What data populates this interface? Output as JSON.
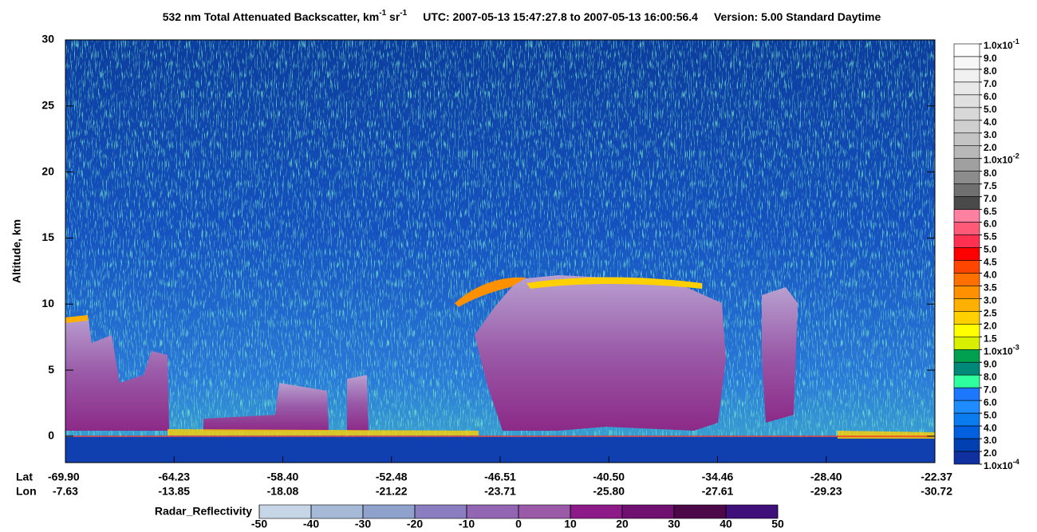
{
  "chart_data": {
    "type": "curtain",
    "title_parts": [
      "532 nm Total Attenuated Backscatter, km",
      "-1",
      " sr",
      "-1",
      "UTC:  2007-05-13 15:47:27.8  to  2007-05-13 16:00:56.4",
      "Version: 5.00  Standard  Daytime"
    ],
    "y_label": "Altitude, km",
    "ylim": [
      -2,
      30
    ],
    "yticks": [
      0,
      5,
      10,
      15,
      20,
      25,
      30
    ],
    "lat_title": "Lat",
    "lon_title": "Lon",
    "lat_labels": [
      "-69.90",
      "-64.23",
      "-58.40",
      "-52.48",
      "-46.51",
      "-40.50",
      "-34.46",
      "-28.40",
      "-22.37"
    ],
    "lon_labels": [
      "-7.63",
      "-13.85",
      "-18.08",
      "-21.22",
      "-23.71",
      "-25.80",
      "-27.61",
      "-29.23",
      "-30.72"
    ],
    "colorbar_labels": [
      {
        "base": "1.0x10",
        "exp": "-1"
      },
      "9.0",
      "8.0",
      "7.0",
      "6.0",
      "5.0",
      "4.0",
      "3.0",
      "2.0",
      {
        "base": "1.0x10",
        "exp": "-2"
      },
      "8.0",
      "7.5",
      "7.0",
      "6.5",
      "6.0",
      "5.5",
      "5.0",
      "4.5",
      "4.0",
      "3.5",
      "3.0",
      "2.5",
      "2.0",
      "1.5",
      {
        "base": "1.0x10",
        "exp": "-3"
      },
      "9.0",
      "8.0",
      "7.0",
      "6.0",
      "5.0",
      "4.0",
      "3.0",
      "2.0",
      {
        "base": "1.0x10",
        "exp": "-4"
      }
    ],
    "colorbar_colors": [
      "#ffffff",
      "#f7f7f7",
      "#f0f0f0",
      "#e8e8e8",
      "#e0e0e0",
      "#d8d8d8",
      "#cfcfcf",
      "#c4c4c4",
      "#b8b8b8",
      "#a0a0a0",
      "#8c8c8c",
      "#707070",
      "#4a4a4a",
      "#ff80a0",
      "#ff5a78",
      "#ff3050",
      "#ff0000",
      "#ff4500",
      "#ff7000",
      "#ff9000",
      "#ffb000",
      "#ffd000",
      "#ffff00",
      "#d8f000",
      "#00a050",
      "#008878",
      "#30ffa0",
      "#1e78ff",
      "#1e8cff",
      "#0a7cf0",
      "#0060e0",
      "#0040b0",
      "#1030a0"
    ],
    "radar_label": "Radar_Reflectivity",
    "radar_lim": [
      -50,
      50
    ],
    "radar_ticks": [
      -50,
      -40,
      -30,
      -20,
      -10,
      0,
      10,
      20,
      30,
      40,
      50
    ],
    "radar_colors": [
      "#c6d6e6",
      "#a6bad8",
      "#8ea2cc",
      "#8a7ec0",
      "#9266b2",
      "#9a5aa8",
      "#8c1a88",
      "#701070",
      "#4c0848",
      "#40107a"
    ]
  }
}
